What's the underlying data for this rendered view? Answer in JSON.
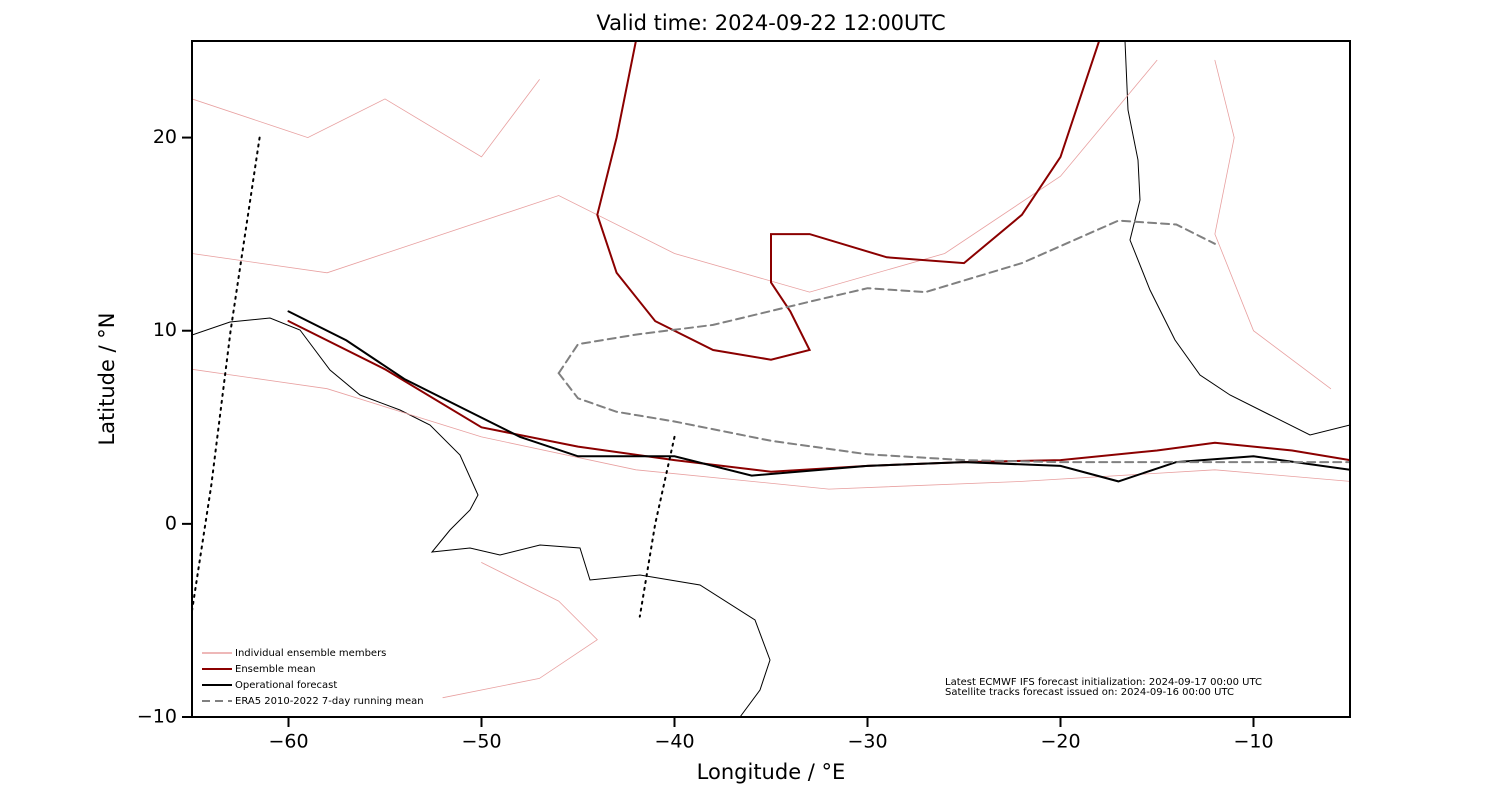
{
  "chart_data": {
    "type": "map",
    "title": "Valid time: 2024-09-22 12:00UTC",
    "x_label": "Longitude / °E",
    "y_label": "Latitude / °N",
    "xlim": [
      -65,
      -5
    ],
    "ylim": [
      -10,
      25
    ],
    "xticks": [
      {
        "value": -60,
        "label": "−60"
      },
      {
        "value": -50,
        "label": "−50"
      },
      {
        "value": -40,
        "label": "−40"
      },
      {
        "value": -30,
        "label": "−30"
      },
      {
        "value": -20,
        "label": "−20"
      },
      {
        "value": -10,
        "label": "−10"
      }
    ],
    "yticks": [
      {
        "value": -10,
        "label": "−10"
      },
      0,
      10,
      20
    ],
    "legend": "lower left",
    "series": [
      {
        "name": "Individual ensemble members",
        "color": "#e8a0a0",
        "linewidth": 0.8,
        "linestyle": "solid",
        "x": [
          -65,
          -58,
          -52,
          -46,
          -40,
          -33,
          -26,
          -20,
          -15,
          null,
          -65,
          -58,
          -50,
          -42,
          -32,
          -22,
          -12,
          -5,
          null,
          -50,
          -46,
          -44,
          -47,
          -52,
          null,
          -65,
          -59,
          -55,
          -50,
          -47,
          null,
          -12,
          -11,
          -12,
          -10,
          -6
        ],
        "y": [
          14,
          13,
          15,
          17,
          14,
          12,
          14,
          18,
          24,
          null,
          8,
          7,
          4.5,
          2.8,
          1.8,
          2.2,
          2.8,
          2.2,
          null,
          -2,
          -4,
          -6,
          -8,
          -9,
          null,
          22,
          20,
          22,
          19,
          23,
          null,
          24,
          20,
          15,
          10,
          7
        ]
      },
      {
        "name": "Ensemble mean",
        "color": "#8b0000",
        "linewidth": 2,
        "linestyle": "solid",
        "x": [
          -60,
          -55,
          -50,
          -45,
          -40,
          -35,
          -30,
          -25,
          -20,
          -15,
          -12,
          -8,
          -5,
          null,
          -42,
          -43,
          -44,
          -43,
          -41,
          -38,
          -35,
          -33,
          -34,
          -35,
          -35,
          -33,
          -29,
          -25,
          -22,
          -20,
          -18
        ],
        "y": [
          10.5,
          8,
          5,
          4,
          3.3,
          2.7,
          3,
          3.2,
          3.3,
          3.8,
          4.2,
          3.8,
          3.3,
          null,
          25,
          20,
          16,
          13,
          10.5,
          9,
          8.5,
          9,
          11,
          12.5,
          15,
          15,
          13.8,
          13.5,
          16,
          19,
          25
        ]
      },
      {
        "name": "Operational forecast",
        "color": "#000000",
        "linewidth": 2,
        "linestyle": "solid",
        "x": [
          -60,
          -57,
          -54,
          -51,
          -48,
          -45,
          -40,
          -36,
          -30,
          -25,
          -20,
          -17,
          -14,
          -10,
          -5
        ],
        "y": [
          11,
          9.5,
          7.5,
          6,
          4.5,
          3.5,
          3.5,
          2.5,
          3,
          3.2,
          3,
          2.2,
          3.2,
          3.5,
          2.8
        ]
      },
      {
        "name": "ERA5 2010-2022 7-day running mean",
        "color": "#808080",
        "linewidth": 2,
        "linestyle": "dashed",
        "x": [
          -46,
          -45,
          -43,
          -40,
          -35,
          -30,
          -25,
          -20,
          -15,
          -5,
          null,
          -46,
          -45,
          -42,
          -38,
          -33,
          -30,
          -27,
          -22,
          -17,
          -14,
          -12
        ],
        "y": [
          7.8,
          6.5,
          5.8,
          5.3,
          4.3,
          3.6,
          3.3,
          3.2,
          3.2,
          3.2,
          null,
          7.8,
          9.3,
          9.8,
          10.3,
          11.5,
          12.2,
          12,
          13.5,
          15.7,
          15.5,
          14.5
        ]
      }
    ],
    "tracks": [
      {
        "color": "#000000",
        "linestyle": "dotted",
        "x": [
          -61.5,
          -63,
          -64,
          -65
        ],
        "y": [
          20,
          10,
          2,
          -4.5
        ]
      },
      {
        "color": "#000000",
        "linestyle": "dotted",
        "x": [
          -40,
          -41,
          -41.8
        ],
        "y": [
          4.5,
          0,
          -4.8
        ]
      }
    ],
    "annotations": [
      "Latest ECMWF IFS forecast initialization: 2024-09-17 00:00 UTC",
      "Satellite tracks forecast issued on: 2024-09-16 00:00 UTC"
    ]
  }
}
